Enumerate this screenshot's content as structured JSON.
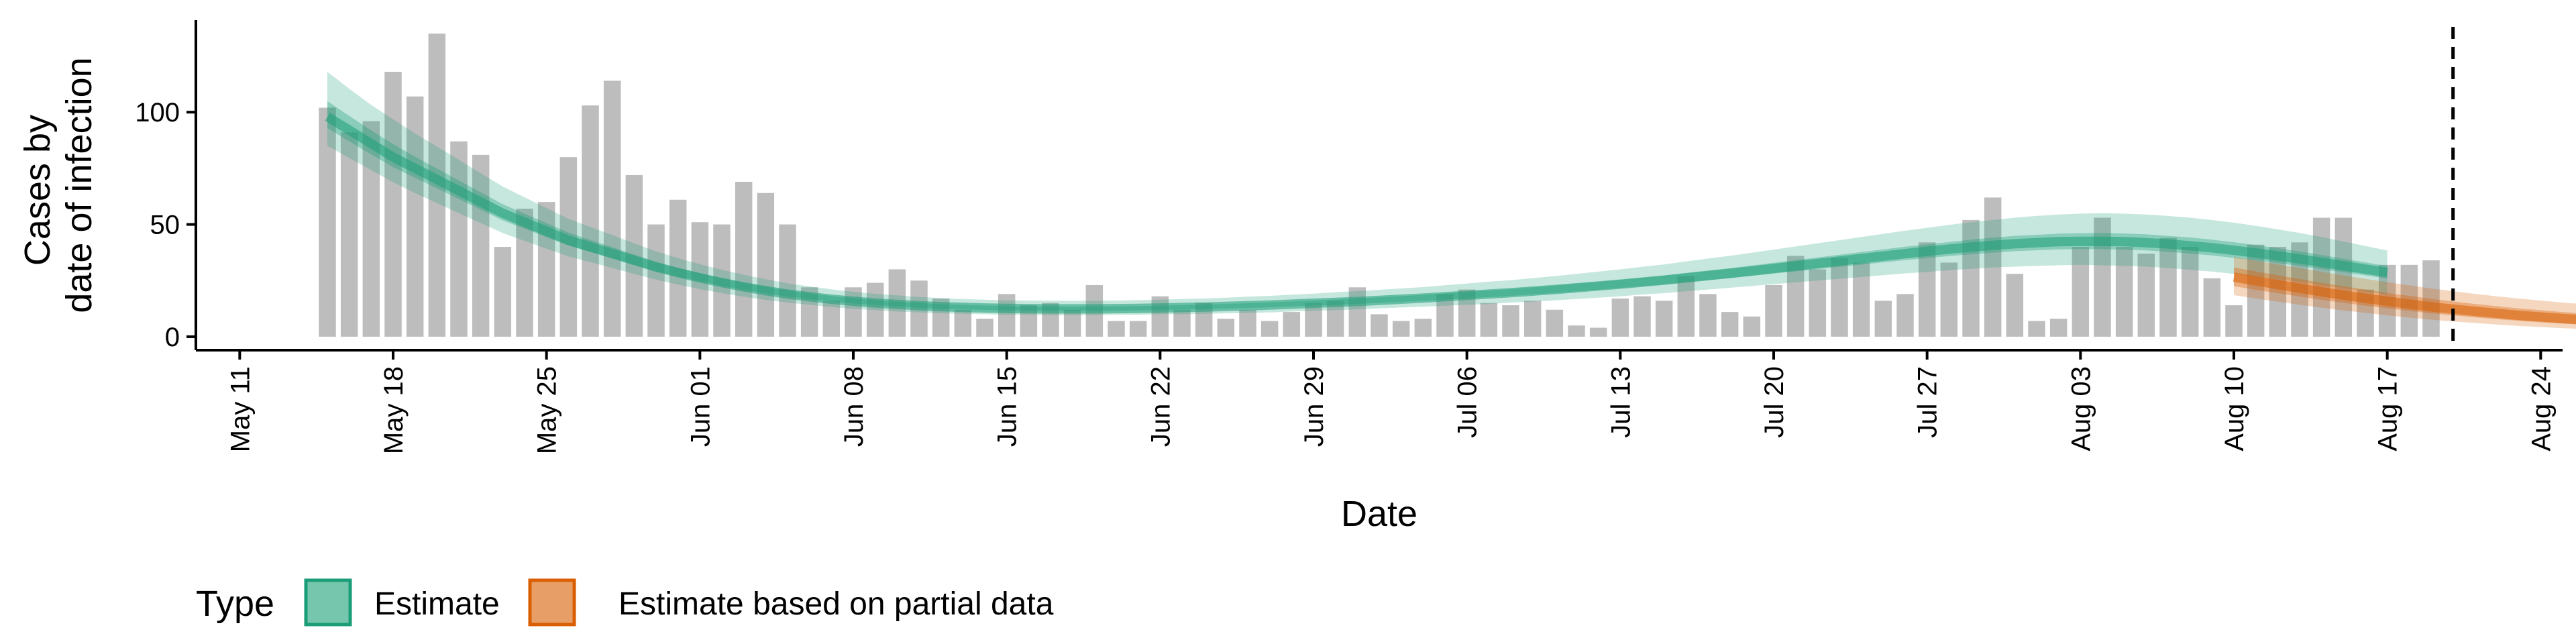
{
  "chart_data": {
    "type": "bar",
    "xlabel": "Date",
    "ylabel": [
      "Cases by",
      "date of infection"
    ],
    "ylim": [
      -6,
      141
    ],
    "yticks": [
      0,
      50,
      100
    ],
    "xlim": [
      "2020-05-09",
      "2020-08-25"
    ],
    "xtick_labels": [
      "May 11",
      "May 18",
      "May 25",
      "Jun 01",
      "Jun 08",
      "Jun 15",
      "Jun 22",
      "Jun 29",
      "Jul 06",
      "Jul 13",
      "Jul 20",
      "Jul 27",
      "Aug 03",
      "Aug 10",
      "Aug 17",
      "Aug 24"
    ],
    "xtick_dates": [
      "2020-05-11",
      "2020-05-18",
      "2020-05-25",
      "2020-06-01",
      "2020-06-08",
      "2020-06-15",
      "2020-06-22",
      "2020-06-29",
      "2020-07-06",
      "2020-07-13",
      "2020-07-20",
      "2020-07-27",
      "2020-08-03",
      "2020-08-10",
      "2020-08-17",
      "2020-08-24"
    ],
    "grid": false,
    "vline_date": "2020-08-20",
    "bars": {
      "start_date": "2020-05-15",
      "color": "#bdbdbd",
      "values": [
        102,
        91,
        96,
        118,
        107,
        135,
        87,
        81,
        40,
        57,
        60,
        80,
        103,
        114,
        72,
        50,
        61,
        51,
        50,
        69,
        64,
        50,
        22,
        16,
        22,
        24,
        30,
        25,
        17,
        12,
        8,
        19,
        14,
        15,
        12,
        23,
        7,
        7,
        18,
        12,
        15,
        8,
        12,
        7,
        11,
        15,
        16,
        22,
        10,
        7,
        8,
        19,
        21,
        15,
        14,
        16,
        12,
        5,
        4,
        17,
        18,
        16,
        27,
        19,
        11,
        9,
        23,
        36,
        30,
        35,
        33,
        16,
        19,
        42,
        33,
        52,
        62,
        28,
        7,
        8,
        40,
        53,
        40,
        37,
        44,
        40,
        26,
        14,
        41,
        40,
        42,
        53,
        53,
        21,
        32,
        32,
        34
      ]
    },
    "series": [
      {
        "name": "Estimate",
        "color": "#1b9e77",
        "start_date": "2020-05-15",
        "median": [
          98,
          92,
          86,
          80,
          75,
          70,
          65,
          60,
          55,
          51,
          47,
          43,
          40,
          37,
          34,
          31,
          28.5,
          26.2,
          24.1,
          22.2,
          20.5,
          19.0,
          17.8,
          16.7,
          15.8,
          15.0,
          14.4,
          13.8,
          13.4,
          13.1,
          12.8,
          12.6,
          12.5,
          12.4,
          12.4,
          12.4,
          12.5,
          12.6,
          12.8,
          13.0,
          13.2,
          13.5,
          13.8,
          14.1,
          14.5,
          14.9,
          15.3,
          15.7,
          16.2,
          16.7,
          17.2,
          17.8,
          18.4,
          19.0,
          19.6,
          20.3,
          21.0,
          21.8,
          22.6,
          23.4,
          24.3,
          25.2,
          26.2,
          27.2,
          28.2,
          29.3,
          30.4,
          31.5,
          32.6,
          33.7,
          34.8,
          35.9,
          37.0,
          38.0,
          39.0,
          39.9,
          40.7,
          41.4,
          41.9,
          42.3,
          42.5,
          42.5,
          42.3,
          41.9,
          41.3,
          40.5,
          39.6,
          38.5,
          37.3,
          36.0,
          34.6,
          33.1,
          31.6,
          30.1,
          28.6
        ],
        "lower_90": [
          85,
          79.6,
          74.2,
          68.8,
          64.0,
          59.5,
          55.0,
          50.6,
          46.2,
          42.7,
          39.2,
          35.8,
          33.2,
          30.6,
          28.0,
          25.4,
          23.2,
          21.2,
          19.4,
          17.8,
          16.4,
          15.2,
          14.2,
          13.2,
          12.4,
          11.8,
          11.2,
          10.8,
          10.4,
          10.2,
          10.0,
          9.8,
          9.8,
          9.6,
          9.6,
          9.6,
          9.8,
          9.8,
          10.0,
          10.0,
          10.2,
          10.4,
          10.6,
          10.8,
          11.2,
          11.6,
          11.8,
          12.2,
          12.6,
          13.0,
          13.4,
          13.8,
          14.2,
          14.6,
          15.2,
          15.6,
          16.2,
          16.8,
          17.4,
          18.0,
          18.8,
          19.4,
          20.2,
          21.0,
          21.8,
          22.6,
          23.4,
          24.2,
          25.0,
          25.8,
          26.6,
          27.4,
          28.2,
          28.8,
          29.6,
          30.2,
          30.8,
          31.2,
          31.6,
          31.8,
          32.0,
          31.8,
          31.6,
          31.2,
          30.6,
          29.8,
          29.0,
          28.0,
          26.8,
          25.6,
          24.4,
          23.0,
          21.6,
          20.2,
          18.8
        ],
        "upper_90": [
          118,
          110.4,
          103.2,
          96.8,
          90.5,
          84.7,
          78.8,
          72.8,
          66.9,
          62.1,
          57.3,
          52.5,
          48.9,
          45.3,
          41.6,
          38.0,
          35.0,
          32.3,
          29.8,
          27.6,
          25.6,
          23.8,
          22.4,
          21.1,
          20.0,
          19.1,
          18.4,
          17.7,
          17.2,
          16.8,
          16.5,
          16.2,
          16.1,
          16.0,
          16.0,
          16.0,
          16.1,
          16.3,
          16.5,
          16.8,
          17.0,
          17.4,
          17.8,
          18.2,
          18.7,
          19.2,
          19.8,
          20.3,
          20.9,
          21.5,
          22.1,
          22.9,
          23.7,
          24.5,
          25.2,
          26.1,
          27.0,
          28.0,
          29.0,
          30.0,
          31.1,
          32.2,
          33.5,
          34.8,
          36.0,
          37.4,
          38.8,
          40.2,
          41.6,
          43.0,
          44.4,
          45.8,
          47.2,
          48.5,
          49.8,
          51.0,
          52.0,
          53.0,
          53.8,
          54.4,
          54.8,
          55.0,
          54.8,
          54.4,
          53.8,
          53.0,
          52.0,
          50.8,
          49.4,
          47.8,
          46.2,
          44.4,
          42.4,
          40.4,
          38.4
        ],
        "lower_50": [
          92.9,
          87.0,
          81.2,
          75.5,
          70.8,
          66.1,
          61.3,
          56.6,
          51.8,
          48.1,
          44.3,
          40.6,
          37.7,
          34.9,
          32.0,
          29.2,
          26.8,
          24.7,
          22.7,
          20.9,
          19.3,
          17.9,
          16.7,
          15.7,
          14.8,
          14.1,
          13.5,
          12.9,
          12.5,
          12.2,
          11.9,
          11.7,
          11.6,
          11.5,
          11.5,
          11.5,
          11.6,
          11.7,
          11.9,
          12.1,
          12.3,
          12.6,
          12.8,
          13.1,
          13.5,
          13.9,
          14.2,
          14.6,
          15.1,
          15.5,
          16.0,
          16.5,
          17.1,
          17.6,
          18.2,
          18.8,
          19.5,
          20.2,
          20.9,
          21.7,
          22.5,
          23.3,
          24.2,
          25.2,
          26.1,
          27.1,
          28.1,
          29.1,
          30.1,
          31.1,
          32.1,
          33.1,
          34.1,
          35.0,
          35.9,
          36.7,
          37.4,
          38.1,
          38.5,
          38.9,
          39.1,
          39.0,
          38.8,
          38.4,
          37.8,
          37.0,
          36.2,
          35.1,
          34.0,
          32.8,
          31.5,
          30.1,
          28.7,
          27.3,
          25.9
        ],
        "upper_50": [
          104.9,
          98.3,
          91.9,
          85.8,
          80.1,
          74.9,
          69.6,
          64.3,
          59.0,
          54.8,
          50.6,
          46.4,
          43.1,
          39.9,
          36.6,
          33.4,
          30.7,
          28.3,
          26.0,
          24.0,
          22.2,
          20.6,
          19.3,
          18.1,
          17.1,
          16.3,
          15.6,
          15.0,
          14.5,
          14.2,
          13.9,
          13.6,
          13.5,
          13.4,
          13.4,
          13.4,
          13.5,
          13.6,
          13.8,
          14.1,
          14.3,
          14.6,
          14.9,
          15.3,
          15.7,
          16.1,
          16.6,
          17.0,
          17.5,
          18.1,
          18.6,
          19.3,
          19.9,
          20.6,
          21.2,
          22.0,
          22.7,
          23.6,
          24.4,
          25.3,
          26.3,
          27.2,
          28.4,
          29.5,
          30.5,
          31.7,
          32.9,
          34.1,
          35.3,
          36.5,
          37.7,
          38.9,
          40.1,
          41.1,
          42.2,
          43.2,
          44.1,
          44.9,
          45.4,
          45.9,
          46.1,
          46.2,
          46.0,
          45.6,
          44.9,
          44.2,
          43.2,
          42.1,
          40.8,
          39.4,
          38.0,
          36.4,
          34.7,
          33.1,
          31.5
        ]
      },
      {
        "name": "Estimate based on partial data",
        "color": "#d95f02",
        "start_date": "2020-08-10",
        "median": [
          26.5,
          24.9,
          23.2,
          21.6,
          20.0,
          18.5,
          17.1,
          15.8,
          14.5,
          13.3,
          12.3,
          11.3,
          10.4,
          9.5,
          8.8,
          8.1,
          7.5
        ],
        "lower_90": [
          18.5,
          17.0,
          15.6,
          14.2,
          12.9,
          11.7,
          10.6,
          9.5,
          8.5,
          7.6,
          6.8,
          6.1,
          5.4,
          4.8,
          4.3,
          3.8,
          3.4
        ],
        "upper_90": [
          35.5,
          33.9,
          32.2,
          30.6,
          28.9,
          27.3,
          25.8,
          24.3,
          22.9,
          21.5,
          20.3,
          19.1,
          18.0,
          17.0,
          16.1,
          15.2,
          14.5
        ],
        "lower_50": [
          22.5,
          20.9,
          19.4,
          17.9,
          16.4,
          15.1,
          13.8,
          12.6,
          11.5,
          10.4,
          9.5,
          8.6,
          7.8,
          7.1,
          6.4,
          5.8,
          5.3
        ],
        "upper_50": [
          30.8,
          29.1,
          27.4,
          25.7,
          24.0,
          22.5,
          21.0,
          19.5,
          18.2,
          16.9,
          15.7,
          14.6,
          13.6,
          12.6,
          11.8,
          11.0,
          10.3
        ]
      }
    ],
    "legend": {
      "title": "Type",
      "position": "bottom-left",
      "items": [
        {
          "label": "Estimate",
          "color": "#1b9e77"
        },
        {
          "label": "Estimate based on partial data",
          "color": "#d95f02"
        }
      ]
    }
  }
}
